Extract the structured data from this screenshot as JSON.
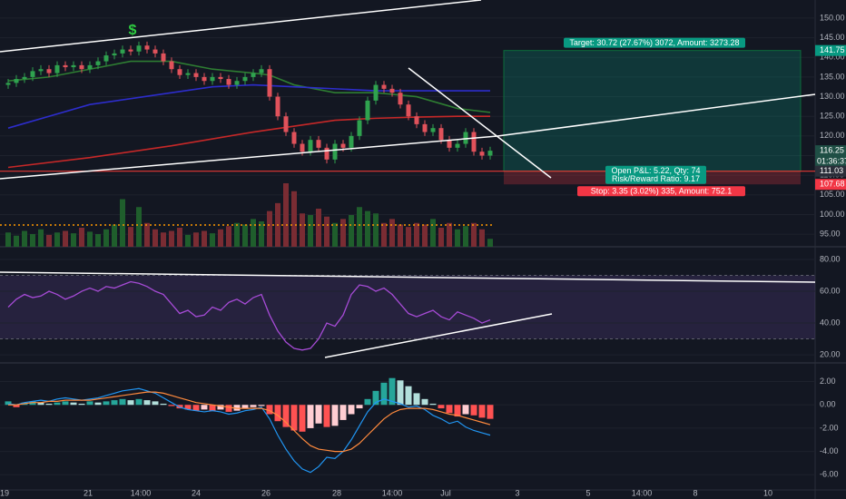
{
  "chart_data": [
    {
      "type": "candlestick",
      "open": [
        133,
        133.5,
        134.5,
        135,
        136.5,
        137,
        136,
        138,
        137.5,
        138,
        137,
        138,
        139,
        140.5,
        141,
        142,
        141.5,
        143,
        142,
        141,
        139,
        137,
        135.5,
        136,
        135,
        134,
        135,
        134.5,
        133,
        134,
        135,
        136,
        137,
        130,
        125,
        121,
        118,
        116,
        119,
        117,
        114,
        118,
        117,
        120,
        124,
        129,
        133,
        132,
        131,
        128,
        125,
        123,
        121,
        122,
        119,
        117,
        118,
        121,
        116,
        115
      ],
      "high": [
        134.5,
        135.5,
        136,
        137.5,
        138,
        138,
        139,
        139,
        139,
        139,
        139,
        140,
        141.5,
        142,
        143,
        143,
        144,
        144,
        143,
        142,
        140,
        138,
        137,
        137,
        136,
        136,
        136,
        135.5,
        135,
        136,
        137,
        138,
        138,
        131,
        126,
        122,
        119,
        120,
        120,
        118,
        119,
        119,
        121,
        125,
        130,
        134,
        134,
        133,
        132,
        129,
        126,
        124,
        123,
        123,
        120,
        119,
        122,
        122,
        117,
        117.25
      ],
      "low": [
        132,
        132.5,
        133.5,
        134,
        135.5,
        135,
        135,
        136.5,
        136.5,
        136,
        136,
        137,
        138,
        139.5,
        140,
        140.5,
        140.5,
        141,
        140,
        138,
        136,
        134.5,
        134.5,
        134,
        133,
        133,
        133.5,
        132,
        132,
        133,
        134,
        135,
        129,
        124,
        120,
        117,
        115,
        115,
        116,
        113,
        113,
        116,
        116,
        119,
        123,
        128,
        131,
        130,
        127,
        124,
        122,
        120,
        120,
        118,
        116,
        116,
        117,
        115,
        114,
        114
      ],
      "close": [
        133.5,
        134.5,
        135,
        136.5,
        137,
        136,
        138,
        137.5,
        138,
        137,
        138,
        139,
        140.5,
        141,
        142,
        141.5,
        143,
        142,
        141,
        139,
        137,
        135.5,
        136,
        135,
        134,
        135,
        134.5,
        133,
        134,
        135,
        136,
        137,
        130,
        125,
        121,
        118,
        116,
        119,
        117,
        114,
        118,
        117,
        120,
        124,
        129,
        133,
        132,
        131,
        128,
        125,
        123,
        121,
        122,
        119,
        117,
        118,
        121,
        116,
        115,
        116.25
      ],
      "volume": [
        18,
        14,
        20,
        16,
        22,
        15,
        18,
        20,
        17,
        24,
        19,
        16,
        22,
        28,
        60,
        25,
        50,
        30,
        22,
        18,
        20,
        24,
        15,
        18,
        20,
        17,
        22,
        26,
        30,
        28,
        35,
        32,
        45,
        55,
        80,
        70,
        42,
        40,
        48,
        38,
        30,
        35,
        40,
        50,
        45,
        42,
        30,
        35,
        28,
        25,
        30,
        28,
        35,
        24,
        30,
        22,
        26,
        30,
        22,
        10
      ],
      "volume_up_color": "#1f5e2c",
      "volume_down_color": "#7a2c33",
      "up_color": "#2fa24f",
      "down_color": "#e0525b",
      "ylim": [
        91.8,
        154.6
      ],
      "yticks": [
        {
          "value": 95,
          "label": "95.00"
        },
        {
          "value": 100,
          "label": "100.00"
        },
        {
          "value": 105,
          "label": "105.00"
        },
        {
          "value": 110,
          "label": "110.00"
        },
        {
          "value": 115,
          "label": "115.00"
        },
        {
          "value": 120,
          "label": "120.00"
        },
        {
          "value": 125,
          "label": "125.00"
        },
        {
          "value": 130,
          "label": "130.00"
        },
        {
          "value": 135,
          "label": "135.00"
        },
        {
          "value": 140,
          "label": "140.00"
        },
        {
          "value": 145,
          "label": "145.00"
        },
        {
          "value": 150,
          "label": "150.00"
        }
      ],
      "moving_averages": [
        {
          "color": "#2e7d32",
          "x": [
            0,
            5,
            10,
            15,
            20,
            25,
            30,
            32,
            35,
            40,
            45,
            50,
            55,
            59
          ],
          "values": [
            134,
            135,
            137,
            139,
            139,
            137,
            136,
            135.5,
            133,
            131,
            131,
            130,
            127,
            126
          ]
        },
        {
          "color": "#2d2dcc",
          "x": [
            0,
            10,
            20,
            25,
            30,
            35,
            40,
            45,
            50,
            55,
            59
          ],
          "values": [
            122,
            128,
            131,
            132.5,
            133,
            132.5,
            132,
            131.5,
            131.5,
            131.5,
            131.5
          ]
        },
        {
          "color": "#c62828",
          "x": [
            0,
            10,
            20,
            30,
            35,
            40,
            45,
            50,
            55,
            59
          ],
          "values": [
            112,
            114.5,
            117.5,
            121,
            122.5,
            124,
            124.5,
            124.8,
            125,
            125
          ]
        }
      ],
      "position": {
        "target": 141.75,
        "entry": 111.03,
        "stop": 107.68,
        "target_label": "Target: 30.72 (27.67%) 3072, Amount: 3273.28",
        "pnl_label": "Open P&L: 5.22, Qty: 74",
        "rr_label": "Risk/Reward Ratio: 9.17",
        "stop_label": "Stop: 3.35 (3.02%) 335, Amount: 752.1"
      },
      "price_tags": [
        {
          "value": 141.75,
          "color": "#089981"
        },
        {
          "value": 116.25,
          "color": "#1f4f45"
        },
        {
          "value": 111.03,
          "color": "#2a2e39"
        },
        {
          "value": 107.68,
          "color": "#f23645"
        }
      ],
      "countdown": "01:36:37",
      "marker": "$"
    },
    {
      "type": "line",
      "color": "#a64bd6",
      "values": [
        50,
        55,
        58,
        56,
        57,
        60,
        58,
        55,
        57,
        60,
        62,
        60,
        63,
        62,
        64,
        66,
        65,
        63,
        60,
        58,
        52,
        46,
        48,
        44,
        45,
        50,
        48,
        53,
        55,
        52,
        56,
        58,
        45,
        35,
        28,
        24,
        23,
        24,
        30,
        40,
        38,
        45,
        58,
        64,
        63,
        60,
        62,
        58,
        52,
        46,
        44,
        46,
        48,
        44,
        42,
        47,
        45,
        43,
        40,
        42
      ],
      "band": [
        30,
        70
      ],
      "ylim": [
        14.9,
        88
      ],
      "yticks": [
        {
          "value": 20,
          "label": "20.00"
        },
        {
          "value": 40,
          "label": "40.00"
        },
        {
          "value": 60,
          "label": "60.00"
        },
        {
          "value": 80,
          "label": "80.00"
        }
      ]
    },
    {
      "type": "macd",
      "histogram": [
        0.3,
        -0.2,
        0.2,
        0.3,
        0.2,
        0.1,
        0.2,
        0.3,
        0.2,
        0.1,
        0.3,
        0.2,
        0.3,
        0.4,
        0.5,
        0.4,
        0.5,
        0.4,
        0.3,
        0.1,
        -0.1,
        -0.3,
        -0.4,
        -0.5,
        -0.4,
        -0.5,
        -0.4,
        -0.6,
        -0.5,
        -0.3,
        -0.2,
        -0.1,
        -0.8,
        -1.4,
        -1.9,
        -2.2,
        -2.3,
        -2.0,
        -1.6,
        -1.9,
        -1.8,
        -1.3,
        -0.8,
        -0.3,
        0.5,
        1.2,
        1.9,
        2.3,
        2.1,
        1.6,
        1.0,
        0.5,
        0.1,
        -0.3,
        -0.7,
        -1.0,
        -0.8,
        -0.9,
        -1.1,
        -1.2
      ],
      "macd": [
        0.1,
        0,
        0.2,
        0.3,
        0.4,
        0.3,
        0.5,
        0.6,
        0.5,
        0.4,
        0.5,
        0.6,
        0.8,
        1.0,
        1.2,
        1.3,
        1.4,
        1.2,
        1.0,
        0.6,
        0.2,
        -0.2,
        -0.4,
        -0.5,
        -0.6,
        -0.5,
        -0.6,
        -0.8,
        -0.7,
        -0.5,
        -0.4,
        -0.2,
        -1.2,
        -2.6,
        -3.8,
        -4.8,
        -5.5,
        -5.8,
        -5.3,
        -4.5,
        -4.6,
        -4.0,
        -3.0,
        -1.8,
        -0.6,
        0.2,
        0.5,
        0.3,
        0.1,
        -0.2,
        -0.1,
        -0.4,
        -0.9,
        -1.2,
        -1.6,
        -1.4,
        -1.9,
        -2.2,
        -2.4,
        -2.6
      ],
      "signal": [
        0,
        0,
        0.1,
        0.2,
        0.2,
        0.3,
        0.3,
        0.4,
        0.4,
        0.4,
        0.4,
        0.5,
        0.6,
        0.7,
        0.8,
        0.9,
        1.0,
        1.1,
        1.1,
        1.0,
        0.8,
        0.6,
        0.4,
        0.2,
        0.1,
        0,
        -0.1,
        -0.2,
        -0.3,
        -0.3,
        -0.3,
        -0.3,
        -0.5,
        -0.9,
        -1.5,
        -2.2,
        -2.9,
        -3.5,
        -3.8,
        -3.9,
        -4.0,
        -4.0,
        -3.8,
        -3.3,
        -2.6,
        -1.9,
        -1.2,
        -0.7,
        -0.4,
        -0.3,
        -0.3,
        -0.3,
        -0.4,
        -0.6,
        -0.8,
        -0.9,
        -1.1,
        -1.3,
        -1.5,
        -1.7
      ],
      "macd_color": "#2196f3",
      "signal_color": "#ff8a3d",
      "ylim": [
        -7.3,
        3.6
      ],
      "yticks": [
        {
          "value": -6,
          "label": "-6.00"
        },
        {
          "value": -4,
          "label": "-4.00"
        },
        {
          "value": -2,
          "label": "-2.00"
        },
        {
          "value": 0,
          "label": "0.00"
        },
        {
          "value": 2,
          "label": "2.00"
        }
      ]
    }
  ],
  "time_axis": [
    "19",
    "21",
    "14:00",
    "24",
    "26",
    "28",
    "14:00",
    "Jul",
    "3",
    "5",
    "14:00",
    "8",
    "10"
  ]
}
